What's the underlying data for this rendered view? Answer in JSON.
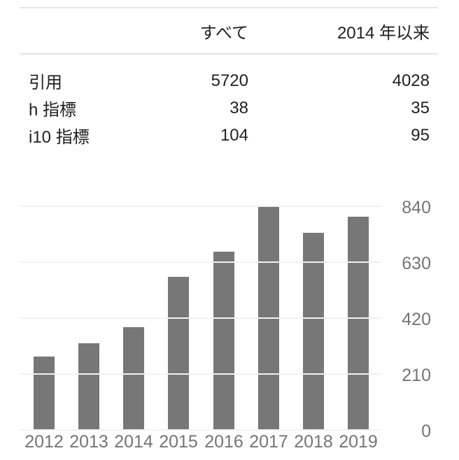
{
  "table": {
    "columns": {
      "all": "すべて",
      "since": "2014 年以来"
    },
    "rows": [
      {
        "label": "引用",
        "all": "5720",
        "since": "4028"
      },
      {
        "label": "h 指標",
        "all": "38",
        "since": "35"
      },
      {
        "label": "i10 指標",
        "all": "104",
        "since": "95"
      }
    ]
  },
  "chart_data": {
    "type": "bar",
    "categories": [
      "2012",
      "2013",
      "2014",
      "2015",
      "2016",
      "2017",
      "2018",
      "2019"
    ],
    "values": [
      275,
      325,
      385,
      575,
      670,
      840,
      740,
      800
    ],
    "title": "",
    "xlabel": "",
    "ylabel": "",
    "ylim": [
      0,
      840
    ],
    "yticks": [
      840,
      630,
      420,
      210,
      0
    ],
    "grid": true,
    "legend_position": "none",
    "yaxis_side": "right",
    "bar_color": "#777777",
    "gridline_color": "#f1f1f1",
    "axis_label_color": "#757575"
  },
  "colors": {
    "text": "#212121",
    "rule": "#e4e4e4",
    "background": "#ffffff"
  }
}
